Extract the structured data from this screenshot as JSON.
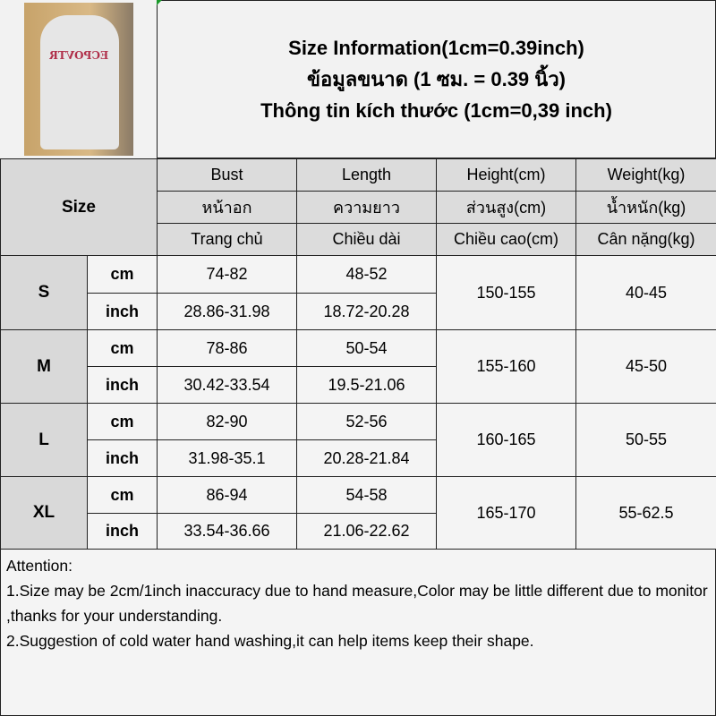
{
  "image": {
    "shirt_print": "ECPOVTR"
  },
  "title": {
    "line1": "Size Information(1cm=0.39inch)",
    "line2": "ข้อมูลขนาด (1 ซม. = 0.39 นิ้ว)",
    "line3": "Thông tin kích thước (1cm=0,39 inch)"
  },
  "header": {
    "size": "Size",
    "columns": [
      {
        "en": "Bust",
        "th": "หน้าอก",
        "vi": "Trang chủ"
      },
      {
        "en": "Length",
        "th": "ความยาว",
        "vi": "Chiều dài"
      },
      {
        "en": "Height(cm)",
        "th": "ส่วนสูง(cm)",
        "vi": "Chiều cao(cm)"
      },
      {
        "en": "Weight(kg)",
        "th": "น้ำหนัก(kg)",
        "vi": "Cân nặng(kg)"
      }
    ]
  },
  "rows": [
    {
      "size": "S",
      "cm_label": "cm",
      "inch_label": "inch",
      "bust_cm": "74-82",
      "length_cm": "48-52",
      "bust_inch": "28.86-31.98",
      "length_inch": "18.72-20.28",
      "height": "150-155",
      "weight": "40-45"
    },
    {
      "size": "M",
      "cm_label": "cm",
      "inch_label": "inch",
      "bust_cm": "78-86",
      "length_cm": "50-54",
      "bust_inch": "30.42-33.54",
      "length_inch": "19.5-21.06",
      "height": "155-160",
      "weight": "45-50"
    },
    {
      "size": "L",
      "cm_label": "cm",
      "inch_label": "inch",
      "bust_cm": "82-90",
      "length_cm": "52-56",
      "bust_inch": "31.98-35.1",
      "length_inch": "20.28-21.84",
      "height": "160-165",
      "weight": "50-55"
    },
    {
      "size": "XL",
      "cm_label": "cm",
      "inch_label": "inch",
      "bust_cm": "86-94",
      "length_cm": "54-58",
      "bust_inch": "33.54-36.66",
      "length_inch": "21.06-22.62",
      "height": "165-170",
      "weight": "55-62.5"
    }
  ],
  "notes": {
    "heading": "Attention:",
    "line1": "1.Size may be 2cm/1inch inaccuracy due to hand measure,Color may be little different due to monitor ,thanks for your understanding.",
    "line2": "2.Suggestion of cold water hand washing,it can help items keep their shape."
  }
}
